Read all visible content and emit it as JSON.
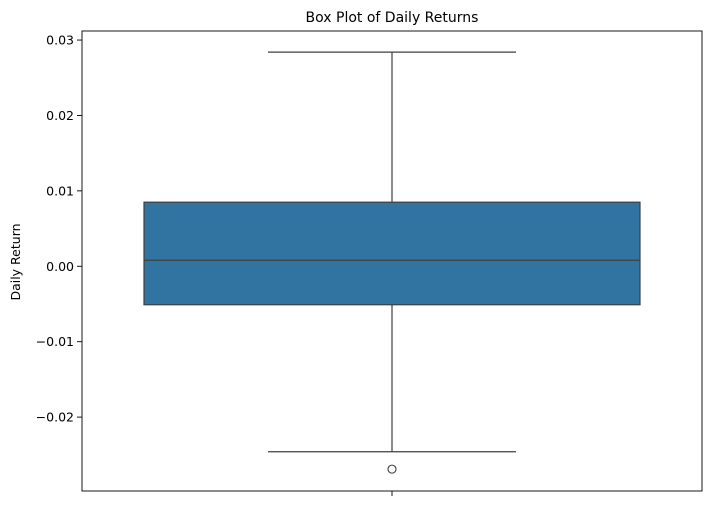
{
  "chart_data": {
    "type": "box",
    "title": "Box Plot of Daily Returns",
    "xlabel": "",
    "ylabel": "Daily Return",
    "ylim": [
      -0.0298,
      0.0312
    ],
    "yticks": [
      0.03,
      0.02,
      0.01,
      0.0,
      -0.01,
      -0.02
    ],
    "ytick_labels": [
      "0.03",
      "0.02",
      "0.01",
      "0.00",
      "−0.01",
      "−0.02"
    ],
    "box": {
      "whisker_low": -0.0246,
      "q1": -0.0051,
      "median": 0.0008,
      "q3": 0.0085,
      "whisker_high": 0.0284,
      "outliers": [
        -0.0269
      ]
    },
    "grid": false,
    "colors": {
      "box_fill": "#3274a1",
      "line": "#3f3f3f",
      "axis": "#000000"
    }
  }
}
